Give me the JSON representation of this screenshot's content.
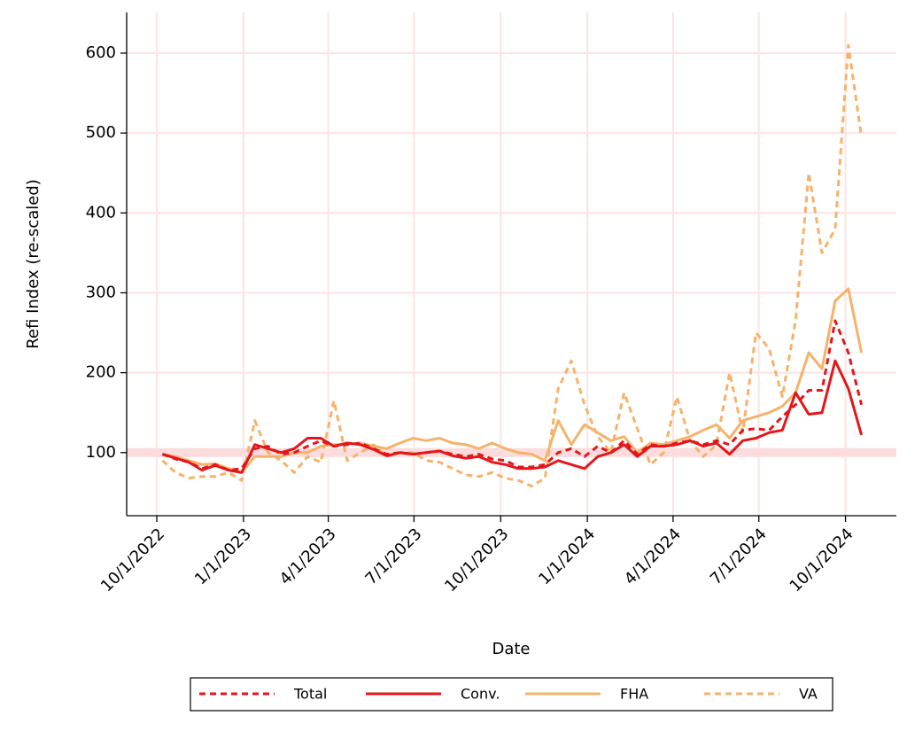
{
  "chart_data": {
    "type": "line",
    "x_label": "Date",
    "y_label": "Refi Index (re-scaled)",
    "x": [
      "10/7/2022",
      "10/21/2022",
      "11/4/2022",
      "11/18/2022",
      "12/2/2022",
      "12/16/2022",
      "12/30/2022",
      "1/13/2023",
      "1/27/2023",
      "2/10/2023",
      "2/24/2023",
      "3/10/2023",
      "3/24/2023",
      "4/7/2023",
      "4/21/2023",
      "5/5/2023",
      "5/19/2023",
      "6/2/2023",
      "6/16/2023",
      "6/30/2023",
      "7/14/2023",
      "7/28/2023",
      "8/11/2023",
      "8/25/2023",
      "9/8/2023",
      "9/22/2023",
      "10/6/2023",
      "10/20/2023",
      "11/3/2023",
      "11/17/2023",
      "12/1/2023",
      "12/15/2023",
      "12/29/2023",
      "1/12/2024",
      "1/26/2024",
      "2/9/2024",
      "2/23/2024",
      "3/8/2024",
      "3/22/2024",
      "4/5/2024",
      "4/19/2024",
      "5/3/2024",
      "5/17/2024",
      "5/31/2024",
      "6/14/2024",
      "6/28/2024",
      "7/12/2024",
      "7/26/2024",
      "8/9/2024",
      "8/23/2024",
      "9/6/2024",
      "9/20/2024",
      "10/4/2024",
      "10/18/2024"
    ],
    "series": [
      {
        "name": "Total",
        "color": "#e3161b",
        "style": "dashed",
        "values": [
          98,
          92,
          88,
          80,
          85,
          78,
          80,
          105,
          108,
          98,
          100,
          108,
          115,
          108,
          110,
          112,
          105,
          98,
          100,
          98,
          100,
          102,
          98,
          95,
          98,
          92,
          90,
          82,
          82,
          85,
          100,
          105,
          95,
          108,
          100,
          115,
          98,
          110,
          108,
          112,
          115,
          110,
          115,
          110,
          128,
          130,
          128,
          145,
          160,
          178,
          178,
          265,
          225,
          160
        ]
      },
      {
        "name": "Conv.",
        "color": "#e3161b",
        "style": "solid",
        "values": [
          98,
          93,
          88,
          78,
          84,
          78,
          75,
          110,
          105,
          100,
          105,
          118,
          118,
          108,
          112,
          110,
          104,
          96,
          100,
          98,
          100,
          102,
          96,
          93,
          95,
          88,
          85,
          80,
          80,
          82,
          90,
          85,
          80,
          95,
          100,
          110,
          95,
          108,
          108,
          110,
          115,
          108,
          112,
          98,
          115,
          118,
          125,
          128,
          175,
          148,
          150,
          215,
          180,
          122
        ]
      },
      {
        "name": "FHA",
        "color": "#f6b26b",
        "style": "solid",
        "values": [
          98,
          95,
          90,
          85,
          86,
          80,
          75,
          95,
          95,
          95,
          100,
          100,
          108,
          110,
          110,
          112,
          108,
          105,
          112,
          118,
          115,
          118,
          112,
          110,
          105,
          112,
          105,
          100,
          98,
          90,
          140,
          110,
          135,
          125,
          115,
          120,
          100,
          112,
          110,
          115,
          120,
          128,
          135,
          118,
          140,
          145,
          150,
          158,
          175,
          225,
          205,
          290,
          305,
          225
        ]
      },
      {
        "name": "VA",
        "color": "#f6b26b",
        "style": "dashed",
        "values": [
          90,
          75,
          68,
          70,
          70,
          75,
          65,
          140,
          100,
          90,
          75,
          95,
          88,
          165,
          90,
          100,
          110,
          95,
          100,
          100,
          90,
          88,
          80,
          72,
          70,
          75,
          68,
          65,
          58,
          68,
          180,
          215,
          160,
          120,
          100,
          175,
          130,
          85,
          100,
          170,
          115,
          95,
          110,
          200,
          125,
          250,
          230,
          170,
          265,
          450,
          350,
          380,
          610,
          495
        ]
      }
    ],
    "xlim": [
      "8/30/2022",
      "11/24/2024"
    ],
    "xticks": [
      "10/1/2022",
      "1/1/2023",
      "4/1/2023",
      "7/1/2023",
      "10/1/2023",
      "1/1/2024",
      "4/1/2024",
      "7/1/2024",
      "10/1/2024"
    ],
    "ylim": [
      21,
      651
    ],
    "yticks": [
      100,
      200,
      300,
      400,
      500,
      600
    ],
    "reference_line": 100,
    "grid": true,
    "legend": "bottom"
  }
}
